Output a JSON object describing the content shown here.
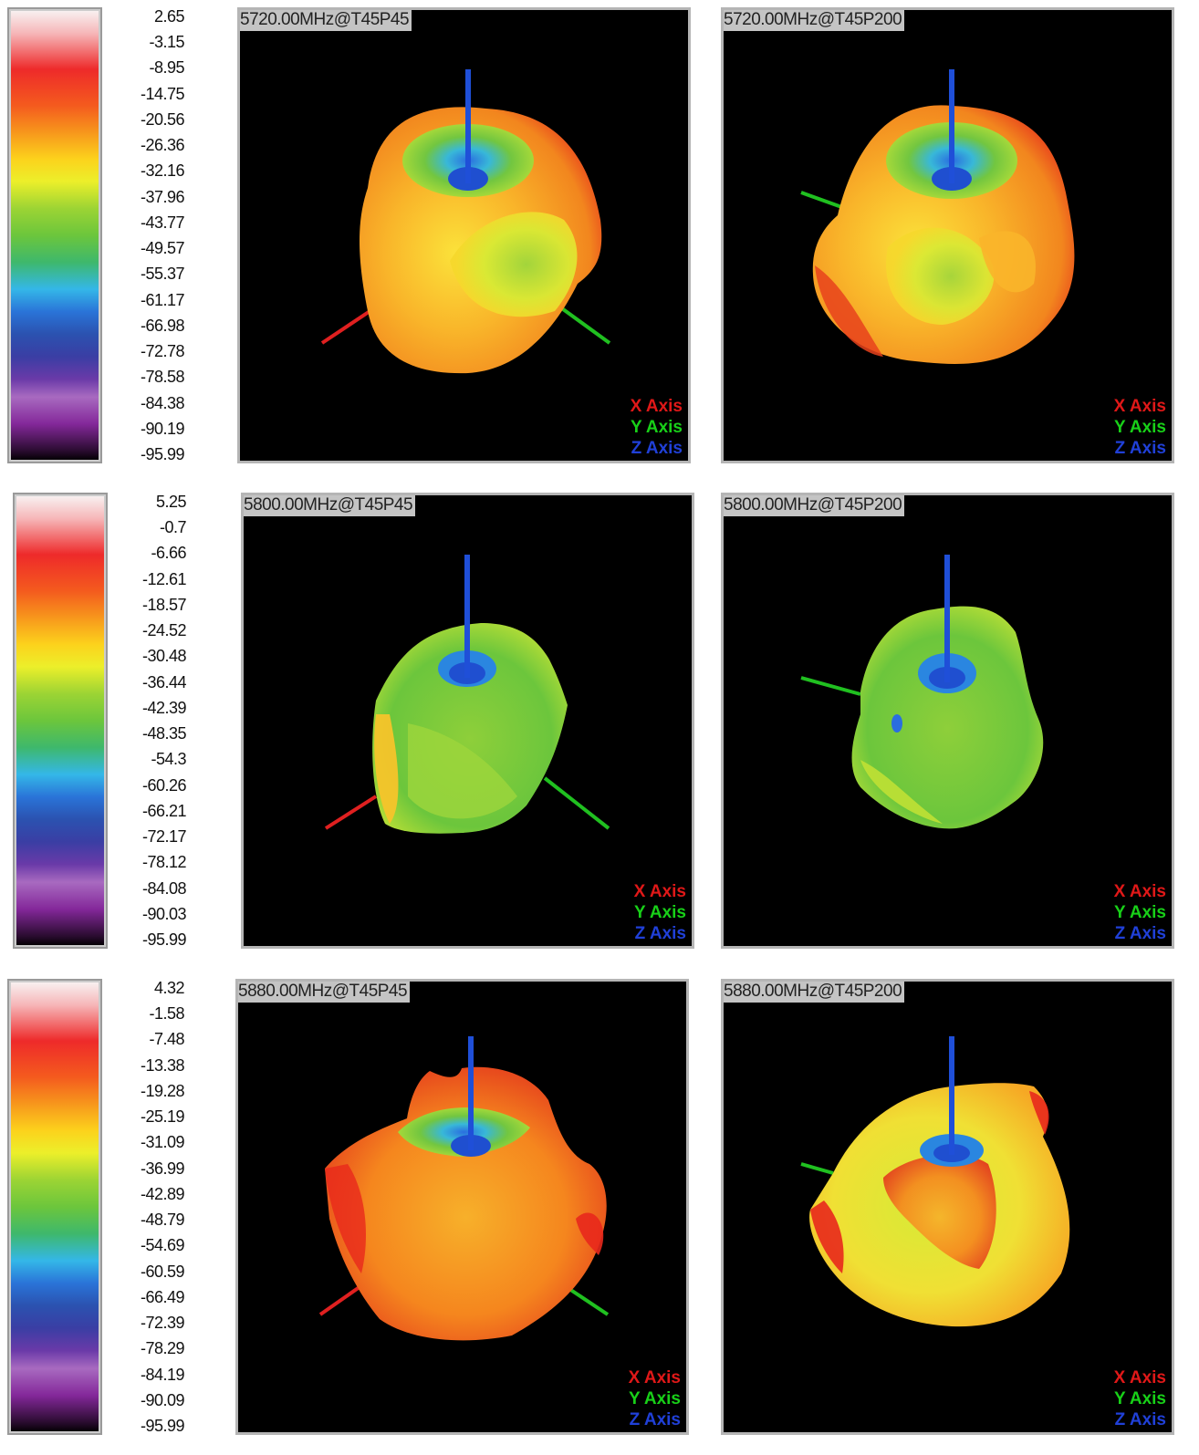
{
  "rows": [
    {
      "scale": [
        "2.65",
        "-3.15",
        "-8.95",
        "-14.75",
        "-20.56",
        "-26.36",
        "-32.16",
        "-37.96",
        "-43.77",
        "-49.57",
        "-55.37",
        "-61.17",
        "-66.98",
        "-72.78",
        "-78.58",
        "-84.38",
        "-90.19",
        "-95.99"
      ],
      "left": {
        "label": "5720.00MHz@T45P45"
      },
      "right": {
        "label": "5720.00MHz@T45P200"
      }
    },
    {
      "scale": [
        "5.25",
        "-0.7",
        "-6.66",
        "-12.61",
        "-18.57",
        "-24.52",
        "-30.48",
        "-36.44",
        "-42.39",
        "-48.35",
        "-54.3",
        "-60.26",
        "-66.21",
        "-72.17",
        "-78.12",
        "-84.08",
        "-90.03",
        "-95.99"
      ],
      "left": {
        "label": "5800.00MHz@T45P45"
      },
      "right": {
        "label": "5800.00MHz@T45P200"
      }
    },
    {
      "scale": [
        "4.32",
        "-1.58",
        "-7.48",
        "-13.38",
        "-19.28",
        "-25.19",
        "-31.09",
        "-36.99",
        "-42.89",
        "-48.79",
        "-54.69",
        "-60.59",
        "-66.49",
        "-72.39",
        "-78.29",
        "-84.19",
        "-90.09",
        "-95.99"
      ],
      "left": {
        "label": "5880.00MHz@T45P45"
      },
      "right": {
        "label": "5880.00MHz@T45P200"
      }
    }
  ],
  "legend": {
    "x": "X Axis",
    "y": "Y Axis",
    "z": "Z Axis"
  },
  "colors": {
    "x_axis": "#e01818",
    "y_axis": "#18d018",
    "z_axis": "#2040d8",
    "panel_bg": "#000000"
  }
}
